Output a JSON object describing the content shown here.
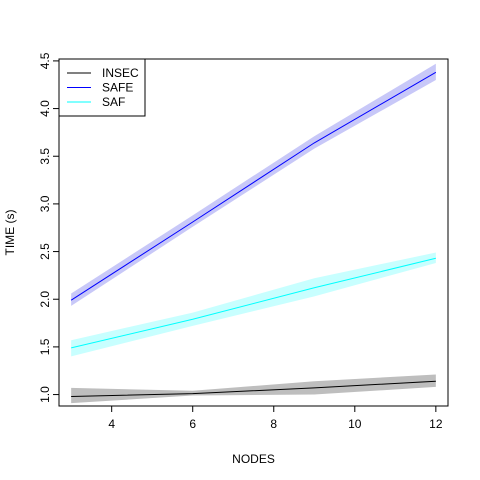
{
  "chart_data": {
    "type": "line",
    "title": "",
    "xlabel": "NODES",
    "ylabel": "TIME (s)",
    "xlim": [
      2.7,
      12.3
    ],
    "ylim": [
      0.88,
      4.52
    ],
    "x_ticks": [
      4,
      6,
      8,
      10,
      12
    ],
    "y_ticks": [
      1.0,
      1.5,
      2.0,
      2.5,
      3.0,
      3.5,
      4.0,
      4.5
    ],
    "x_tick_labels": [
      "4",
      "6",
      "8",
      "10",
      "12"
    ],
    "y_tick_labels": [
      "1.0",
      "1.5",
      "2.0",
      "2.5",
      "3.0",
      "3.5",
      "4.0",
      "4.5"
    ],
    "grid": false,
    "legend_position": "top-left",
    "x": [
      3,
      6,
      9,
      12
    ],
    "series": [
      {
        "name": "INSEC",
        "color": "#000000",
        "band_color": "#bebebe",
        "values": [
          0.98,
          1.01,
          1.07,
          1.14
        ],
        "lower": [
          0.91,
          0.99,
          1.0,
          1.08
        ],
        "upper": [
          1.07,
          1.04,
          1.14,
          1.21
        ]
      },
      {
        "name": "SAFE",
        "color": "#0000ff",
        "band_color": "#c8c8f8",
        "values": [
          1.99,
          2.81,
          3.64,
          4.38
        ],
        "lower": [
          1.93,
          2.76,
          3.58,
          4.3
        ],
        "upper": [
          2.06,
          2.88,
          3.71,
          4.47
        ]
      },
      {
        "name": "SAF",
        "color": "#00ffff",
        "band_color": "#c8ffff",
        "values": [
          1.49,
          1.79,
          2.12,
          2.43
        ],
        "lower": [
          1.4,
          1.72,
          2.03,
          2.38
        ],
        "upper": [
          1.57,
          1.86,
          2.22,
          2.49
        ]
      }
    ]
  }
}
